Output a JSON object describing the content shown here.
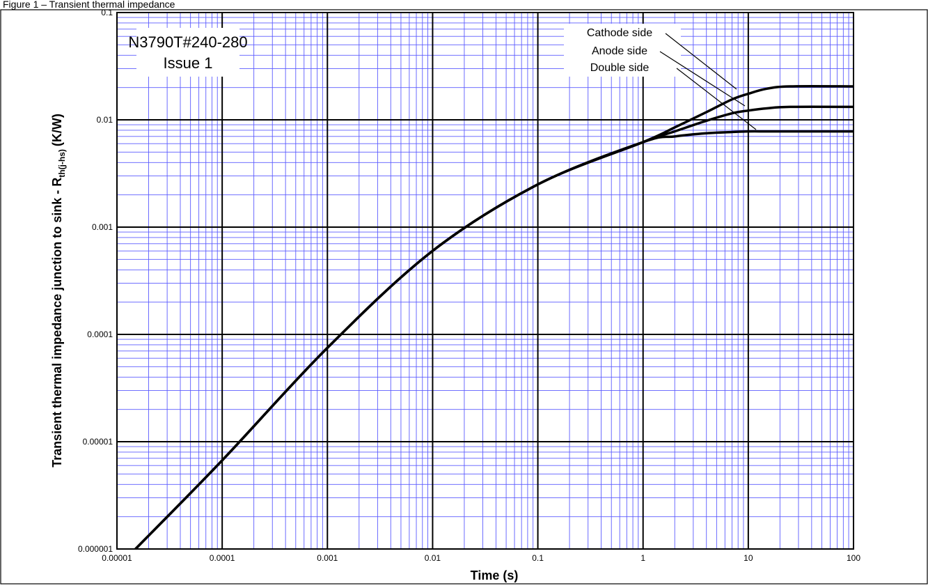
{
  "figure": {
    "caption": "Figure 1 – Transient thermal impedance"
  },
  "chart_data": {
    "type": "line",
    "x_scale": "log",
    "y_scale": "log",
    "xlim": [
      1e-05,
      100
    ],
    "ylim": [
      1e-06,
      0.1
    ],
    "xlabel": "Time (s)",
    "ylabel_main": "Transient thermal impedance junction to sink - R",
    "ylabel_sub": "th(j-hs)",
    "ylabel_unit": "(K/W)",
    "x_ticks": [
      "0.00001",
      "0.0001",
      "0.001",
      "0.01",
      "0.1",
      "1",
      "10",
      "100"
    ],
    "y_ticks": [
      "0.000001",
      "0.00001",
      "0.0001",
      "0.001",
      "0.01",
      "0.1"
    ],
    "grid": true,
    "grid_major_color": "#000000",
    "grid_minor_color": "#5b5bff",
    "line_color": "#000000",
    "device_label": [
      "N3790T#240-280",
      "Issue 1"
    ],
    "legend_labels": [
      "Cathode side",
      "Anode side",
      "Double side"
    ],
    "series": [
      {
        "name": "Cathode side",
        "x": [
          1.5e-05,
          0.0001,
          0.001,
          0.01,
          0.1,
          1,
          2,
          4,
          7,
          10,
          15,
          25,
          100
        ],
        "y": [
          1e-06,
          6.7e-06,
          7.5e-05,
          0.0006,
          0.0025,
          0.0062,
          0.0085,
          0.0118,
          0.0155,
          0.0175,
          0.0195,
          0.0205,
          0.0205
        ]
      },
      {
        "name": "Anode side",
        "x": [
          1.5e-05,
          0.0001,
          0.001,
          0.01,
          0.1,
          1,
          2,
          4,
          7,
          10,
          15,
          25,
          100
        ],
        "y": [
          1e-06,
          6.7e-06,
          7.5e-05,
          0.0006,
          0.0025,
          0.0062,
          0.0078,
          0.0098,
          0.0115,
          0.0122,
          0.0128,
          0.0132,
          0.0132
        ]
      },
      {
        "name": "Double side",
        "x": [
          1.5e-05,
          0.0001,
          0.001,
          0.01,
          0.1,
          1,
          2,
          4,
          7,
          10,
          15,
          25,
          100
        ],
        "y": [
          1e-06,
          6.7e-06,
          7.5e-05,
          0.0006,
          0.0025,
          0.0062,
          0.007,
          0.0075,
          0.0077,
          0.0078,
          0.0078,
          0.0078,
          0.0078
        ]
      }
    ]
  }
}
